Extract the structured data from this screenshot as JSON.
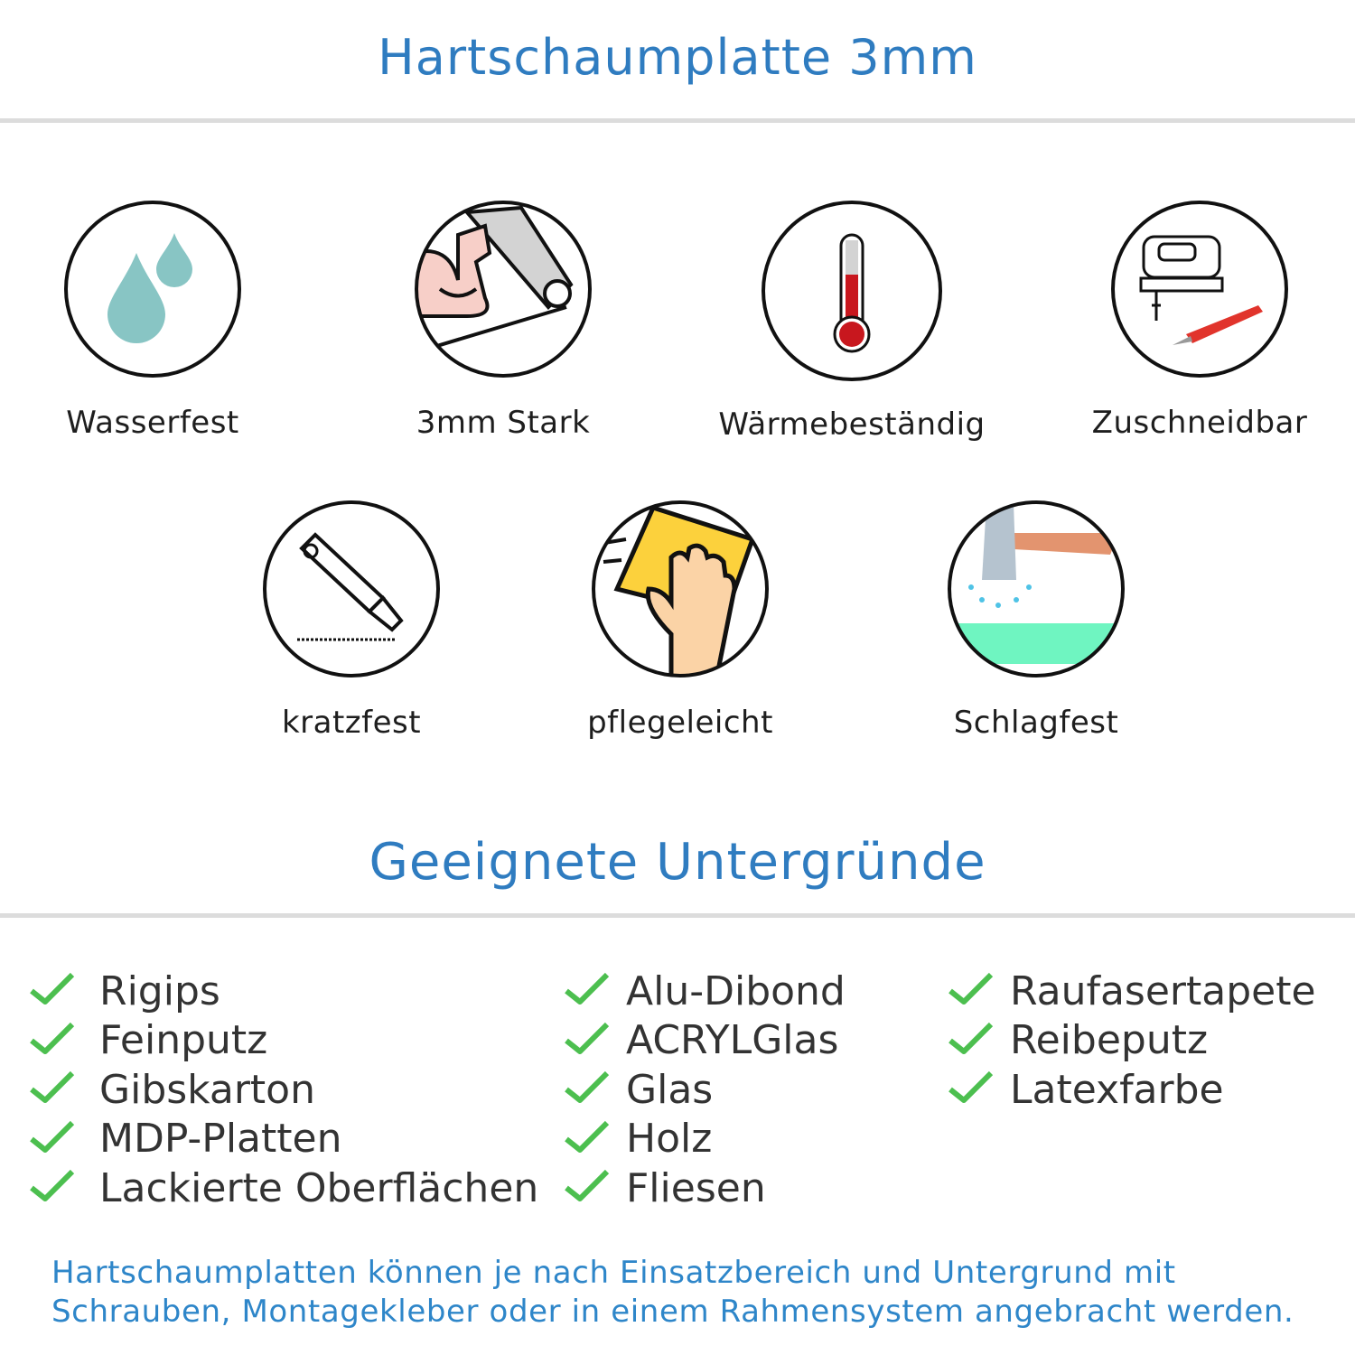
{
  "header": {
    "title": "Hartschaumplatte 3mm"
  },
  "features": [
    {
      "label": "Wasserfest",
      "icon": "water-drops-icon"
    },
    {
      "label": "3mm Stark",
      "icon": "strong-arm-icon"
    },
    {
      "label": "Wärmebeständig",
      "icon": "thermometer-icon"
    },
    {
      "label": "Zuschneidbar",
      "icon": "jigsaw-cutter-icon"
    },
    {
      "label": "kratzfest",
      "icon": "cutter-knife-icon"
    },
    {
      "label": "pflegeleicht",
      "icon": "cleaning-hand-icon"
    },
    {
      "label": "Schlagfest",
      "icon": "hammer-icon"
    }
  ],
  "surfaces": {
    "title": "Geeignete Untergründe",
    "columns": [
      [
        "Rigips",
        "Feinputz",
        "Gibskarton",
        "MDP-Platten",
        "Lackierte Oberflächen"
      ],
      [
        "Alu-Dibond",
        "ACRYLGlas",
        "Glas",
        "Holz",
        "Fliesen"
      ],
      [
        "Raufasertapete",
        "Reibeputz",
        "Latexfarbe"
      ]
    ]
  },
  "footer": {
    "line1": "Hartschaumplatten können je nach Einsatzbereich und Untergrund mit",
    "line2": "Schrauben, Montagekleber oder in einem Rahmensystem angebracht werden."
  },
  "colors": {
    "accent": "#2f7cc0",
    "check": "#4cbf4f",
    "text": "#333333"
  }
}
